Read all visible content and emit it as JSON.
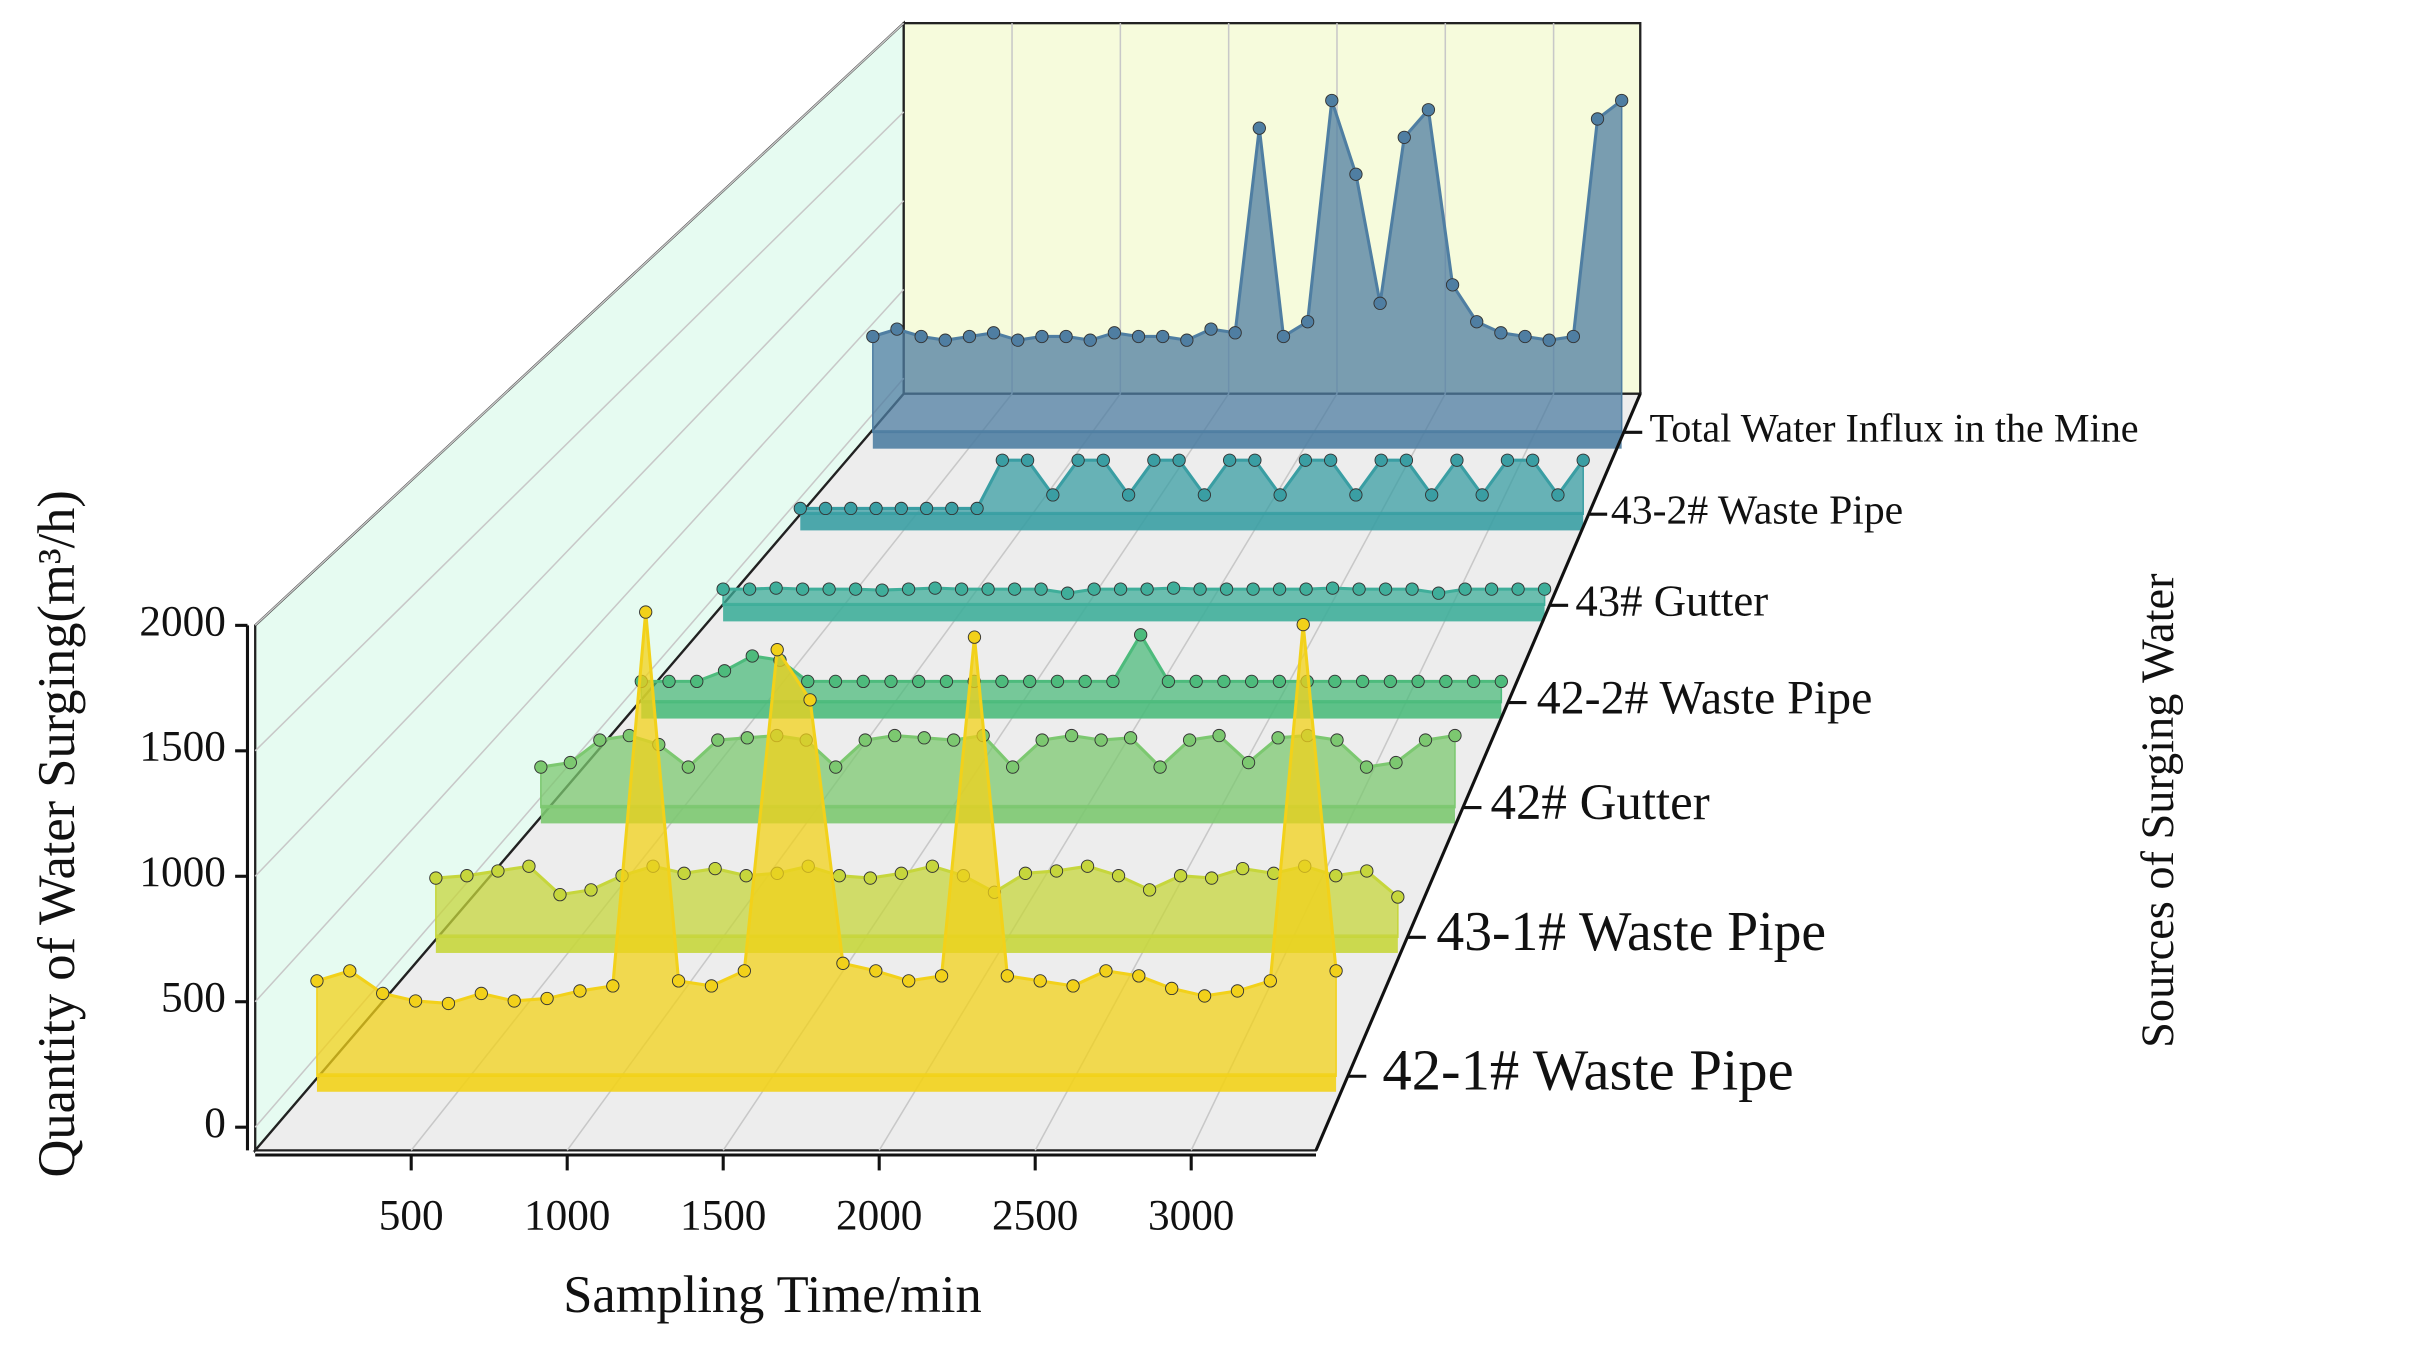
{
  "chart_data": {
    "type": "waterfall3d",
    "y_label": "Quantity of Water Surging(m³/h)",
    "x_label": "Sampling Time/min",
    "z_label": "Sources of Surging Water",
    "xlim": [
      0,
      3400
    ],
    "xticks": [
      500,
      1000,
      1500,
      2000,
      2500,
      3000
    ],
    "ylim": [
      0,
      2000
    ],
    "yticks": [
      0,
      500,
      1000,
      1500,
      2000
    ],
    "grid": true,
    "x": [
      200,
      300,
      400,
      500,
      600,
      700,
      800,
      900,
      1000,
      1100,
      1200,
      1300,
      1400,
      1500,
      1600,
      1700,
      1800,
      1900,
      2000,
      2100,
      2200,
      2300,
      2400,
      2500,
      2600,
      2700,
      2800,
      2900,
      3000,
      3100,
      3200,
      3300
    ],
    "series": [
      {
        "name": "42-1# Waste Pipe",
        "color": "#f2d11a",
        "values": [
          380,
          420,
          330,
          300,
          290,
          330,
          300,
          310,
          340,
          360,
          1850,
          380,
          360,
          420,
          1700,
          1500,
          450,
          420,
          380,
          400,
          1750,
          400,
          380,
          360,
          420,
          400,
          350,
          320,
          340,
          380,
          1800,
          420
        ]
      },
      {
        "name": "43-1# Waste Pipe",
        "color": "#c6d63c",
        "values": [
          250,
          260,
          280,
          300,
          180,
          200,
          260,
          300,
          270,
          290,
          260,
          270,
          300,
          260,
          250,
          270,
          300,
          260,
          190,
          270,
          280,
          300,
          260,
          200,
          260,
          250,
          290,
          270,
          300,
          260,
          280,
          170
        ]
      },
      {
        "name": "42# Gutter",
        "color": "#7cc870",
        "values": [
          180,
          200,
          300,
          320,
          280,
          180,
          300,
          310,
          320,
          300,
          180,
          300,
          320,
          310,
          300,
          320,
          180,
          300,
          320,
          300,
          310,
          180,
          300,
          320,
          200,
          310,
          320,
          300,
          180,
          200,
          300,
          320
        ]
      },
      {
        "name": "42-2# Waste Pipe",
        "color": "#4dbb7c",
        "values": [
          100,
          100,
          100,
          150,
          220,
          200,
          100,
          100,
          100,
          100,
          100,
          100,
          100,
          100,
          100,
          100,
          100,
          100,
          320,
          100,
          100,
          100,
          100,
          100,
          100,
          100,
          100,
          100,
          100,
          100,
          100,
          100
        ]
      },
      {
        "name": "43# Gutter",
        "color": "#3fae9a",
        "values": [
          80,
          80,
          85,
          80,
          80,
          80,
          75,
          80,
          85,
          80,
          80,
          80,
          80,
          60,
          80,
          80,
          80,
          85,
          80,
          80,
          80,
          80,
          80,
          85,
          80,
          80,
          80,
          60,
          80,
          80,
          80,
          80
        ]
      },
      {
        "name": "43-2# Waste Pipe",
        "color": "#3a9ea3",
        "values": [
          30,
          30,
          30,
          30,
          30,
          30,
          30,
          30,
          280,
          280,
          100,
          280,
          280,
          100,
          280,
          280,
          100,
          280,
          280,
          100,
          280,
          280,
          100,
          280,
          280,
          100,
          280,
          100,
          280,
          280,
          100,
          280
        ]
      },
      {
        "name": "Total Water Influx in the Mine",
        "color": "#4f7ea2",
        "values": [
          520,
          560,
          520,
          500,
          520,
          540,
          500,
          520,
          520,
          500,
          540,
          520,
          520,
          500,
          560,
          540,
          1650,
          520,
          600,
          1800,
          1400,
          700,
          1600,
          1750,
          800,
          600,
          540,
          520,
          500,
          520,
          1700,
          1800
        ]
      }
    ]
  }
}
